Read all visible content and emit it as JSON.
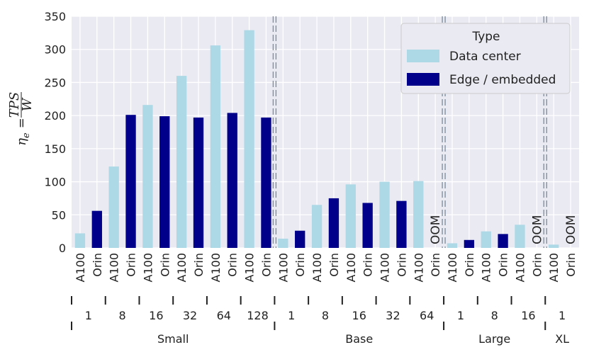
{
  "chart_data": {
    "type": "bar",
    "ylabel_main": "η",
    "ylabel_sub": "e",
    "ylabel_eq": "=",
    "ylabel_num": "TPS",
    "ylabel_den": "W",
    "ylim": [
      0,
      350
    ],
    "yticks": [
      "0",
      "50",
      "100",
      "150",
      "200",
      "250",
      "300",
      "350"
    ],
    "grid": true,
    "legend": {
      "title": "Type",
      "placement": "top-right",
      "entries": [
        {
          "label": "Data center",
          "color": "#add8e6"
        },
        {
          "label": "Edge / embedded",
          "color": "#00008b"
        }
      ]
    },
    "oom_label": "OOM",
    "bars": [
      {
        "label": "A100",
        "type": "Data center",
        "value": 22
      },
      {
        "label": "Orin",
        "type": "Edge / embedded",
        "value": 56
      },
      {
        "label": "A100",
        "type": "Data center",
        "value": 123
      },
      {
        "label": "Orin",
        "type": "Edge / embedded",
        "value": 201
      },
      {
        "label": "A100",
        "type": "Data center",
        "value": 216
      },
      {
        "label": "Orin",
        "type": "Edge / embedded",
        "value": 199
      },
      {
        "label": "A100",
        "type": "Data center",
        "value": 260
      },
      {
        "label": "Orin",
        "type": "Edge / embedded",
        "value": 197
      },
      {
        "label": "A100",
        "type": "Data center",
        "value": 306
      },
      {
        "label": "Orin",
        "type": "Edge / embedded",
        "value": 204
      },
      {
        "label": "A100",
        "type": "Data center",
        "value": 329
      },
      {
        "label": "Orin",
        "type": "Edge / embedded",
        "value": 197
      },
      {
        "label": "A100",
        "type": "Data center",
        "value": 14
      },
      {
        "label": "Orin",
        "type": "Edge / embedded",
        "value": 26
      },
      {
        "label": "A100",
        "type": "Data center",
        "value": 65
      },
      {
        "label": "Orin",
        "type": "Edge / embedded",
        "value": 75
      },
      {
        "label": "A100",
        "type": "Data center",
        "value": 96
      },
      {
        "label": "Orin",
        "type": "Edge / embedded",
        "value": 68
      },
      {
        "label": "A100",
        "type": "Data center",
        "value": 100
      },
      {
        "label": "Orin",
        "type": "Edge / embedded",
        "value": 71
      },
      {
        "label": "A100",
        "type": "Data center",
        "value": 101
      },
      {
        "label": "Orin",
        "type": "Edge / embedded",
        "value": null
      },
      {
        "label": "A100",
        "type": "Data center",
        "value": 7
      },
      {
        "label": "Orin",
        "type": "Edge / embedded",
        "value": 12
      },
      {
        "label": "A100",
        "type": "Data center",
        "value": 25
      },
      {
        "label": "Orin",
        "type": "Edge / embedded",
        "value": 21
      },
      {
        "label": "A100",
        "type": "Data center",
        "value": 35
      },
      {
        "label": "Orin",
        "type": "Edge / embedded",
        "value": null
      },
      {
        "label": "A100",
        "type": "Data center",
        "value": 5
      },
      {
        "label": "Orin",
        "type": "Edge / embedded",
        "value": null
      }
    ],
    "batch_groups": [
      {
        "label": "1",
        "start": 0,
        "end": 1
      },
      {
        "label": "8",
        "start": 2,
        "end": 3
      },
      {
        "label": "16",
        "start": 4,
        "end": 5
      },
      {
        "label": "32",
        "start": 6,
        "end": 7
      },
      {
        "label": "64",
        "start": 8,
        "end": 9
      },
      {
        "label": "128",
        "start": 10,
        "end": 11
      },
      {
        "label": "1",
        "start": 12,
        "end": 13
      },
      {
        "label": "8",
        "start": 14,
        "end": 15
      },
      {
        "label": "16",
        "start": 16,
        "end": 17
      },
      {
        "label": "32",
        "start": 18,
        "end": 19
      },
      {
        "label": "64",
        "start": 20,
        "end": 21
      },
      {
        "label": "1",
        "start": 22,
        "end": 23
      },
      {
        "label": "8",
        "start": 24,
        "end": 25
      },
      {
        "label": "16",
        "start": 26,
        "end": 27
      },
      {
        "label": "1",
        "start": 28,
        "end": 29
      }
    ],
    "model_groups": [
      {
        "label": "Small",
        "start": 0,
        "end": 11
      },
      {
        "label": "Base",
        "start": 12,
        "end": 21
      },
      {
        "label": "Large",
        "start": 22,
        "end": 27
      },
      {
        "label": "XL",
        "start": 28,
        "end": 29
      }
    ]
  }
}
